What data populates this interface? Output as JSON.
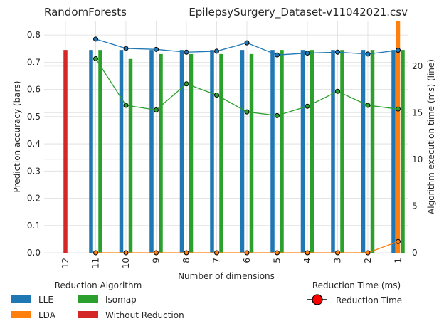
{
  "chart_data": {
    "type": "bar",
    "title_left": "RandomForests",
    "title_right": "EpilepsySurgery_Dataset-v11042021.csv",
    "xlabel": "Number of dimensions",
    "ylabel_left": "Prediction accuracy (bars)",
    "ylabel_right": "Algorithm execution time (ms) (line)",
    "categories": [
      "12",
      "11",
      "10",
      "9",
      "8",
      "7",
      "6",
      "5",
      "4",
      "3",
      "2",
      "1"
    ],
    "ylim_left": [
      0,
      0.85
    ],
    "ylim_right": [
      0,
      24.8
    ],
    "yticks_left": [
      0.0,
      0.1,
      0.2,
      0.3,
      0.4,
      0.5,
      0.6,
      0.7,
      0.8
    ],
    "yticks_right": [
      0,
      5,
      10,
      15,
      20
    ],
    "grid": true,
    "bar_series": [
      {
        "name": "LLE",
        "color": "#1f77b4",
        "values": [
          null,
          0.745,
          0.745,
          0.745,
          0.745,
          0.745,
          0.745,
          0.745,
          0.745,
          0.745,
          0.745,
          0.745
        ]
      },
      {
        "name": "LDA",
        "color": "#ff7f0e",
        "values": [
          null,
          null,
          null,
          null,
          null,
          null,
          null,
          null,
          null,
          null,
          null,
          0.85
        ]
      },
      {
        "name": "Isomap",
        "color": "#2ca02c",
        "values": [
          null,
          0.745,
          0.712,
          0.73,
          0.73,
          0.73,
          0.73,
          0.745,
          0.745,
          0.745,
          0.745,
          0.745
        ]
      },
      {
        "name": "Without Reduction",
        "color": "#d62728",
        "values": [
          0.745,
          null,
          null,
          null,
          null,
          null,
          null,
          null,
          null,
          null,
          null,
          null
        ]
      }
    ],
    "line_series": [
      {
        "series": "LLE",
        "color": "#1f77b4",
        "values": [
          null,
          22.9,
          21.9,
          21.8,
          21.5,
          21.6,
          22.5,
          21.2,
          21.4,
          21.5,
          21.3,
          21.7
        ]
      },
      {
        "series": "Isomap",
        "color": "#2ca02c",
        "values": [
          null,
          20.8,
          15.8,
          15.3,
          18.1,
          16.9,
          15.1,
          14.7,
          15.7,
          17.3,
          15.8,
          15.4
        ]
      },
      {
        "series": "LDA",
        "color": "#ff7f0e",
        "values": [
          null,
          0,
          0,
          0,
          0,
          0,
          0,
          0,
          0,
          0,
          0,
          1.2
        ]
      }
    ],
    "legend_title_left": "Reduction Algorithm",
    "legend_title_right": "Reduction Time (ms)",
    "legend_marker_label": "Reduction Time",
    "legend_marker_color": "#ff0000"
  }
}
